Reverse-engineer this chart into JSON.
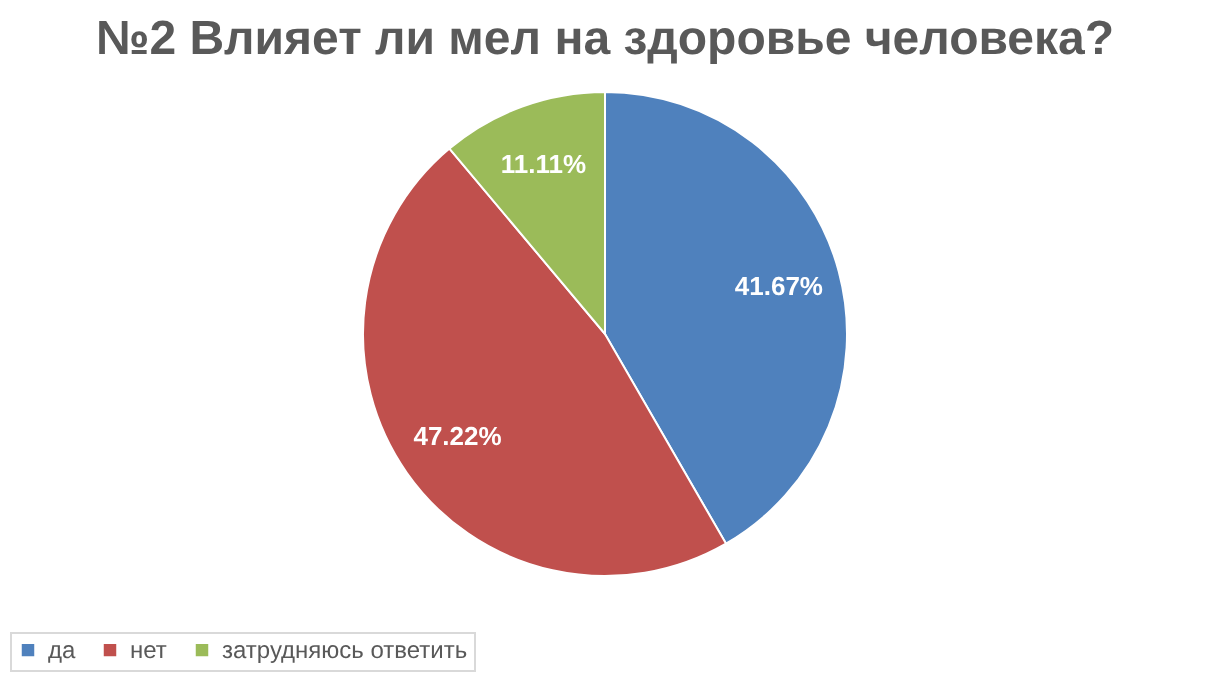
{
  "chart_data": {
    "type": "pie",
    "title": "№2 Влияет ли мел на здоровье человека?",
    "categories": [
      "да",
      "нет",
      "затрудняюсь ответить"
    ],
    "values": [
      41.67,
      47.22,
      11.11
    ],
    "colors": [
      "#4f81bd",
      "#c0504d",
      "#9bbb59"
    ],
    "value_labels": [
      "41.67%",
      "47.22%",
      "11.11%"
    ],
    "legend": "bottom"
  }
}
